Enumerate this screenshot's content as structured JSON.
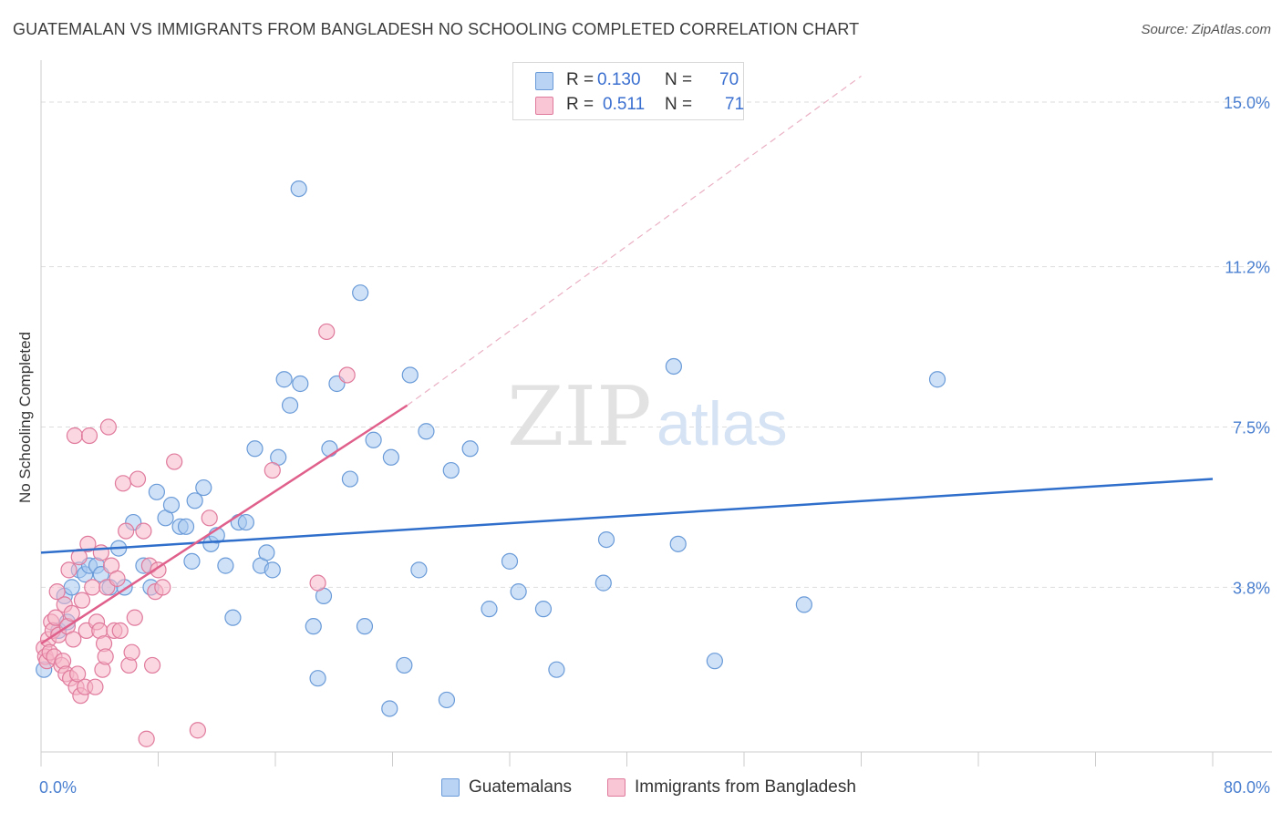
{
  "title": "GUATEMALAN VS IMMIGRANTS FROM BANGLADESH NO SCHOOLING COMPLETED CORRELATION CHART",
  "source": "Source: ZipAtlas.com",
  "watermark": {
    "zip": "ZIP",
    "atlas": "atlas"
  },
  "legend": {
    "rows": [
      {
        "r_label": "R =",
        "r_value": "0.130",
        "n_label": "N =",
        "n_value": "70"
      },
      {
        "r_label": "R =",
        "r_value": "0.511",
        "n_label": "N =",
        "n_value": "71"
      }
    ]
  },
  "bottom_legend": [
    "Guatemalans",
    "Immigrants from Bangladesh"
  ],
  "colors": {
    "blue_fill": "#a8c8f0",
    "blue_stroke": "#6a9bd8",
    "blue_line": "#2f6fcb",
    "pink_fill": "#f6b7c9",
    "pink_stroke": "#e07a9c",
    "pink_line": "#e0608c",
    "tick": "#4a7fd0",
    "grid": "#dddddd"
  },
  "chart_data": {
    "type": "scatter",
    "title": "GUATEMALAN VS IMMIGRANTS FROM BANGLADESH NO SCHOOLING COMPLETED CORRELATION CHART",
    "xlabel": "",
    "ylabel": "No Schooling Completed",
    "xlim": [
      0,
      80
    ],
    "ylim": [
      0,
      15.8
    ],
    "x_tick_labels": [
      "0.0%",
      "80.0%"
    ],
    "y_ticks": [
      3.8,
      7.5,
      11.2,
      15.0
    ],
    "y_tick_labels": [
      "3.8%",
      "7.5%",
      "11.2%",
      "15.0%"
    ],
    "grid": "horizontal dashed",
    "legend_position": "top-center",
    "series": [
      {
        "name": "Guatemalans",
        "color": "#6a9bd8",
        "trend": {
          "x": [
            0,
            80
          ],
          "y": [
            4.6,
            6.3
          ],
          "style": "solid"
        },
        "points": [
          [
            0.2,
            1.9
          ],
          [
            1.2,
            2.8
          ],
          [
            1.8,
            3.0
          ],
          [
            1.6,
            3.6
          ],
          [
            2.1,
            3.8
          ],
          [
            2.6,
            4.2
          ],
          [
            3.0,
            4.1
          ],
          [
            3.3,
            4.3
          ],
          [
            3.8,
            4.3
          ],
          [
            4.1,
            4.1
          ],
          [
            4.7,
            3.8
          ],
          [
            5.3,
            4.7
          ],
          [
            5.7,
            3.8
          ],
          [
            6.3,
            5.3
          ],
          [
            7.0,
            4.3
          ],
          [
            7.5,
            3.8
          ],
          [
            7.9,
            6.0
          ],
          [
            8.5,
            5.4
          ],
          [
            8.9,
            5.7
          ],
          [
            9.5,
            5.2
          ],
          [
            9.9,
            5.2
          ],
          [
            10.3,
            4.4
          ],
          [
            10.5,
            5.8
          ],
          [
            11.1,
            6.1
          ],
          [
            11.6,
            4.8
          ],
          [
            12.0,
            5.0
          ],
          [
            12.6,
            4.3
          ],
          [
            13.1,
            3.1
          ],
          [
            13.5,
            5.3
          ],
          [
            14.0,
            5.3
          ],
          [
            14.6,
            7.0
          ],
          [
            15.0,
            4.3
          ],
          [
            15.4,
            4.6
          ],
          [
            15.8,
            4.2
          ],
          [
            16.2,
            6.8
          ],
          [
            16.6,
            8.6
          ],
          [
            17.0,
            8.0
          ],
          [
            17.6,
            13.0
          ],
          [
            17.7,
            8.5
          ],
          [
            18.6,
            2.9
          ],
          [
            18.9,
            1.7
          ],
          [
            19.3,
            3.6
          ],
          [
            19.7,
            7.0
          ],
          [
            20.2,
            8.5
          ],
          [
            21.1,
            6.3
          ],
          [
            21.8,
            10.6
          ],
          [
            22.1,
            2.9
          ],
          [
            22.7,
            7.2
          ],
          [
            23.8,
            1.0
          ],
          [
            23.9,
            6.8
          ],
          [
            24.8,
            2.0
          ],
          [
            25.2,
            8.7
          ],
          [
            25.8,
            4.2
          ],
          [
            26.3,
            7.4
          ],
          [
            27.7,
            1.2
          ],
          [
            28.0,
            6.5
          ],
          [
            29.3,
            7.0
          ],
          [
            30.6,
            3.3
          ],
          [
            32.0,
            4.4
          ],
          [
            32.6,
            3.7
          ],
          [
            34.3,
            3.3
          ],
          [
            35.2,
            1.9
          ],
          [
            38.4,
            3.9
          ],
          [
            38.6,
            4.9
          ],
          [
            43.2,
            8.9
          ],
          [
            43.5,
            4.8
          ],
          [
            46.0,
            2.1
          ],
          [
            52.1,
            3.4
          ],
          [
            61.2,
            8.6
          ]
        ]
      },
      {
        "name": "Immigrants from Bangladesh",
        "color": "#e07a9c",
        "trend": {
          "x": [
            0,
            25
          ],
          "y": [
            2.5,
            8.0
          ],
          "style": "solid",
          "extended_to": [
            56,
            15.6
          ]
        },
        "points": [
          [
            0.2,
            2.4
          ],
          [
            0.3,
            2.2
          ],
          [
            0.4,
            2.1
          ],
          [
            0.5,
            2.6
          ],
          [
            0.6,
            2.3
          ],
          [
            0.7,
            3.0
          ],
          [
            0.8,
            2.8
          ],
          [
            0.9,
            2.2
          ],
          [
            1.0,
            3.1
          ],
          [
            1.1,
            3.7
          ],
          [
            1.2,
            2.7
          ],
          [
            1.4,
            2.0
          ],
          [
            1.5,
            2.1
          ],
          [
            1.6,
            3.4
          ],
          [
            1.7,
            1.8
          ],
          [
            1.8,
            2.9
          ],
          [
            1.9,
            4.2
          ],
          [
            2.0,
            1.7
          ],
          [
            2.1,
            3.2
          ],
          [
            2.2,
            2.6
          ],
          [
            2.3,
            7.3
          ],
          [
            2.4,
            1.5
          ],
          [
            2.5,
            1.8
          ],
          [
            2.6,
            4.5
          ],
          [
            2.7,
            1.3
          ],
          [
            2.8,
            3.5
          ],
          [
            3.0,
            1.5
          ],
          [
            3.1,
            2.8
          ],
          [
            3.2,
            4.8
          ],
          [
            3.3,
            7.3
          ],
          [
            3.5,
            3.8
          ],
          [
            3.7,
            1.5
          ],
          [
            3.8,
            3.0
          ],
          [
            4.0,
            2.8
          ],
          [
            4.1,
            4.6
          ],
          [
            4.2,
            1.9
          ],
          [
            4.3,
            2.5
          ],
          [
            4.4,
            2.2
          ],
          [
            4.5,
            3.8
          ],
          [
            4.6,
            7.5
          ],
          [
            4.8,
            4.3
          ],
          [
            5.0,
            2.8
          ],
          [
            5.2,
            4.0
          ],
          [
            5.4,
            2.8
          ],
          [
            5.6,
            6.2
          ],
          [
            5.8,
            5.1
          ],
          [
            6.0,
            2.0
          ],
          [
            6.2,
            2.3
          ],
          [
            6.4,
            3.1
          ],
          [
            6.6,
            6.3
          ],
          [
            7.0,
            5.1
          ],
          [
            7.2,
            0.3
          ],
          [
            7.4,
            4.3
          ],
          [
            7.6,
            2.0
          ],
          [
            7.8,
            3.7
          ],
          [
            8.0,
            4.2
          ],
          [
            8.3,
            3.8
          ],
          [
            9.1,
            6.7
          ],
          [
            10.7,
            0.5
          ],
          [
            11.5,
            5.4
          ],
          [
            15.8,
            6.5
          ],
          [
            18.9,
            3.9
          ],
          [
            19.5,
            9.7
          ],
          [
            20.9,
            8.7
          ]
        ]
      }
    ]
  }
}
